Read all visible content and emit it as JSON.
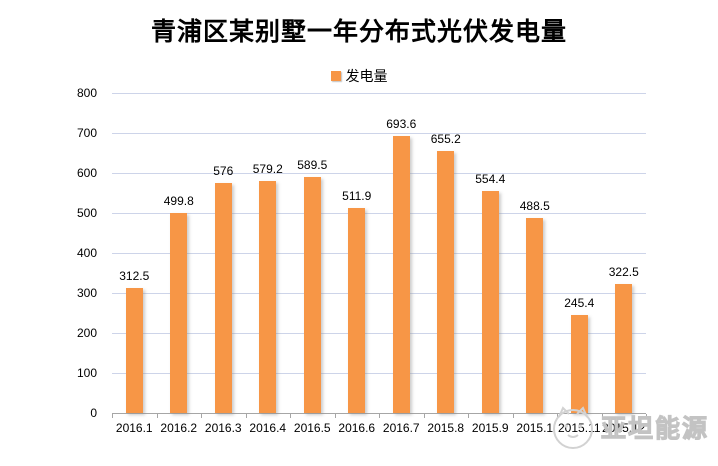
{
  "title": "青浦区某别墅一年分布式光伏发电量",
  "legend": {
    "label": "发电量"
  },
  "watermark": {
    "text": "亚坦能源",
    "logo": "cat-face-logo"
  },
  "colors": {
    "bar": "#F79646",
    "gridline": "#CDD4E9",
    "axis_line": "#A6A6A6",
    "text": "#000000",
    "watermark": "#C9C9C9",
    "background": "#FFFFFF"
  },
  "chart_data": {
    "type": "bar",
    "title": "青浦区某别墅一年分布式光伏发电量",
    "categories": [
      "2016.1",
      "2016.2",
      "2016.3",
      "2016.4",
      "2016.5",
      "2016.6",
      "2016.7",
      "2015.8",
      "2015.9",
      "2015.1",
      "2015.11",
      "2015.12"
    ],
    "values": [
      312.5,
      499.8,
      576,
      579.2,
      589.5,
      511.9,
      693.6,
      655.2,
      554.4,
      488.5,
      245.4,
      322.5
    ],
    "series": [
      {
        "name": "发电量",
        "values": [
          312.5,
          499.8,
          576,
          579.2,
          589.5,
          511.9,
          693.6,
          655.2,
          554.4,
          488.5,
          245.4,
          322.5
        ]
      }
    ],
    "legend": [
      "发电量"
    ],
    "legend_position": "top-center",
    "xlabel": "",
    "ylabel": "",
    "ylim": [
      0,
      800
    ],
    "yticks": [
      0,
      100,
      200,
      300,
      400,
      500,
      600,
      700,
      800
    ],
    "grid": true,
    "data_labels": true
  }
}
